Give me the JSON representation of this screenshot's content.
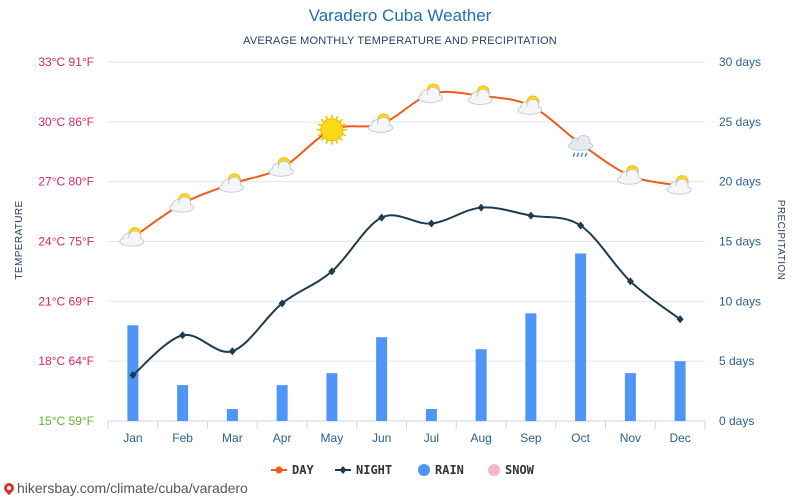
{
  "title": "Varadero Cuba Weather",
  "subtitle": "AVERAGE MONTHLY TEMPERATURE AND PRECIPITATION",
  "footer_text": "hikersbay.com/climate/cuba/varadero",
  "colors": {
    "day": "#f05a1a",
    "night": "#1d3c4f",
    "rain": "#4f95f5",
    "snow": "#f7b6c8",
    "temp_axis": "#e0245e",
    "temp_axis_bottom": "#5cb531",
    "precip_axis": "#2a5f8f",
    "grid": "#e6e6e6"
  },
  "chart_data": {
    "type": "line",
    "title": "Varadero Cuba Weather",
    "subtitle": "AVERAGE MONTHLY TEMPERATURE AND PRECIPITATION",
    "categories": [
      "Jan",
      "Feb",
      "Mar",
      "Apr",
      "May",
      "Jun",
      "Jul",
      "Aug",
      "Sep",
      "Oct",
      "Nov",
      "Dec"
    ],
    "ylabel_left": "TEMPERATURE",
    "ylabel_right": "PRECIPITATION",
    "left_axis": {
      "ylim": [
        15,
        33
      ],
      "ticks": [
        "15°C 59°F",
        "18°C 64°F",
        "21°C 69°F",
        "24°C 75°F",
        "27°C 80°F",
        "30°C 86°F",
        "33°C 91°F"
      ]
    },
    "right_axis": {
      "ylim": [
        0,
        30
      ],
      "ticks": [
        "0 days",
        "5 days",
        "10 days",
        "15 days",
        "20 days",
        "25 days",
        "30 days"
      ]
    },
    "series": [
      {
        "name": "DAY",
        "type": "line",
        "axis": "left",
        "values": [
          24.2,
          25.9,
          26.9,
          27.7,
          29.6,
          29.9,
          31.4,
          31.3,
          30.8,
          28.9,
          27.3,
          26.8
        ]
      },
      {
        "name": "NIGHT",
        "type": "line",
        "axis": "left",
        "values": [
          17.3,
          19.3,
          18.5,
          20.9,
          22.5,
          25.2,
          24.9,
          25.7,
          25.3,
          24.8,
          22.0,
          20.1
        ]
      },
      {
        "name": "RAIN",
        "type": "bar",
        "axis": "right",
        "values": [
          8,
          3,
          1,
          3,
          4,
          7,
          1,
          6,
          9,
          14,
          4,
          5
        ]
      },
      {
        "name": "SNOW",
        "type": "bar",
        "axis": "right",
        "values": [
          0,
          0,
          0,
          0,
          0,
          0,
          0,
          0,
          0,
          0,
          0,
          0
        ]
      }
    ],
    "weather_icons": [
      "sun-cloud-icon",
      "sun-cloud-icon",
      "sun-cloud-icon",
      "sun-cloud-icon",
      "sun-icon",
      "sun-cloud-icon",
      "sun-cloud-icon",
      "sun-cloud-icon",
      "sun-cloud-icon",
      "rain-cloud-icon",
      "sun-cloud-icon",
      "sun-cloud-icon"
    ],
    "grid": true,
    "legend_position": "bottom-center"
  }
}
